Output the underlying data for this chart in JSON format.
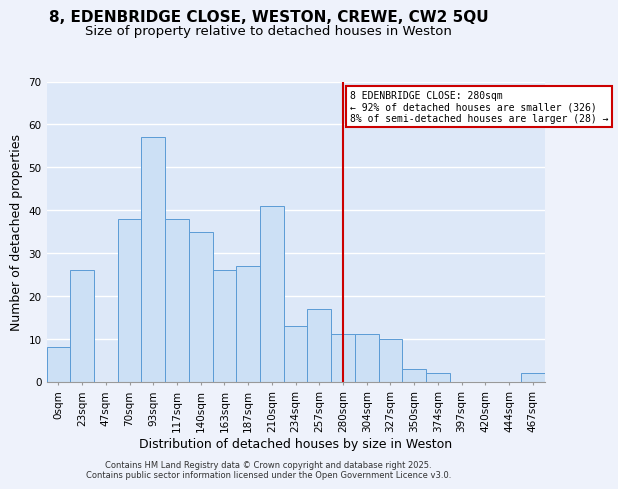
{
  "title": "8, EDENBRIDGE CLOSE, WESTON, CREWE, CW2 5QU",
  "subtitle": "Size of property relative to detached houses in Weston",
  "xlabel": "Distribution of detached houses by size in Weston",
  "ylabel": "Number of detached properties",
  "bar_labels": [
    "0sqm",
    "23sqm",
    "47sqm",
    "70sqm",
    "93sqm",
    "117sqm",
    "140sqm",
    "163sqm",
    "187sqm",
    "210sqm",
    "234sqm",
    "257sqm",
    "280sqm",
    "304sqm",
    "327sqm",
    "350sqm",
    "374sqm",
    "397sqm",
    "420sqm",
    "444sqm",
    "467sqm"
  ],
  "bar_values": [
    8,
    26,
    0,
    38,
    57,
    38,
    35,
    26,
    27,
    41,
    13,
    17,
    11,
    11,
    10,
    3,
    2,
    0,
    0,
    0,
    2
  ],
  "bar_color": "#cce0f5",
  "bar_edge_color": "#5b9bd5",
  "ylim": [
    0,
    70
  ],
  "yticks": [
    0,
    10,
    20,
    30,
    40,
    50,
    60,
    70
  ],
  "vline_x": 12,
  "vline_color": "#cc0000",
  "annotation_title": "8 EDENBRIDGE CLOSE: 280sqm",
  "annotation_line1": "← 92% of detached houses are smaller (326)",
  "annotation_line2": "8% of semi-detached houses are larger (28) →",
  "annotation_box_color": "#ffffff",
  "annotation_box_edge": "#cc0000",
  "footer1": "Contains HM Land Registry data © Crown copyright and database right 2025.",
  "footer2": "Contains public sector information licensed under the Open Government Licence v3.0.",
  "background_color": "#eef2fb",
  "plot_bg_color": "#dde8f8",
  "grid_color": "#ffffff",
  "title_fontsize": 11,
  "subtitle_fontsize": 9.5,
  "tick_fontsize": 7.5,
  "label_fontsize": 9
}
